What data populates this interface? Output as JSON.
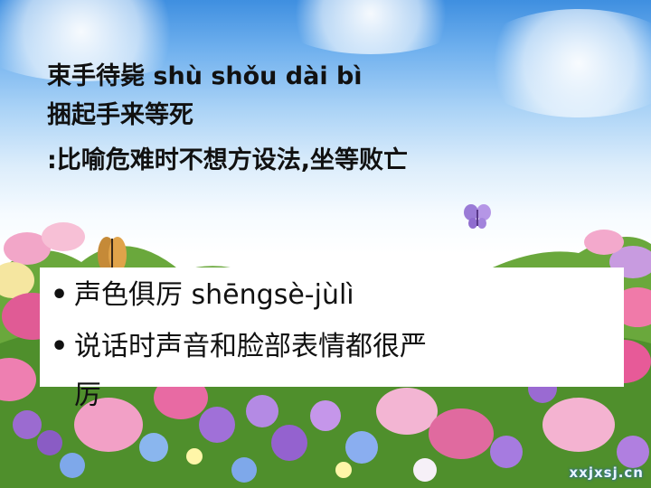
{
  "idiom1": {
    "title": "束手待毙 shù shǒu dài bì",
    "gloss": "捆起手来等死",
    "meaning": ":比喻危难时不想方设法,坐等败亡"
  },
  "idiom2": {
    "bullets": [
      {
        "marker": "•",
        "text": "声色俱厉 shēngsè-jùlì"
      },
      {
        "marker": "•",
        "text": "说话时声音和脸部表情都很严"
      }
    ],
    "continuation": "厉"
  },
  "watermark": "xxjxsj.cn",
  "colors": {
    "sky_top": "#3f8fe0",
    "text": "#111111",
    "callout_bg": "#ffffff"
  }
}
